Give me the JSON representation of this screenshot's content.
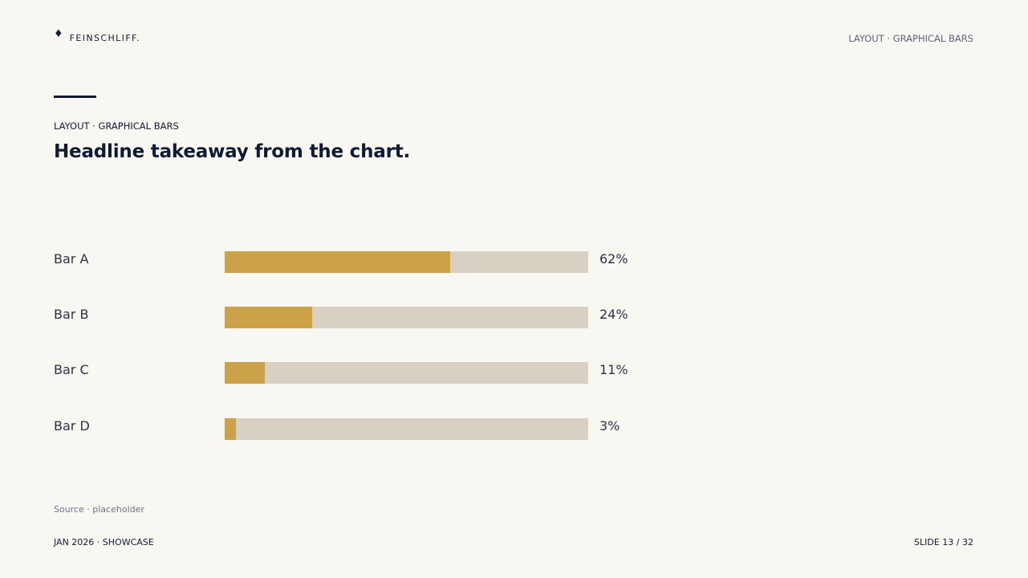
{
  "brand": {
    "icon": "diamond-icon",
    "name": "FEINSCHLIFF."
  },
  "header": {
    "section": "LAYOUT · GRAPHICAL BARS"
  },
  "eyebrow": "LAYOUT · GRAPHICAL BARS",
  "headline": "Headline takeaway from the chart.",
  "colors": {
    "bar_fill": "#cba24a",
    "bar_track": "#d8d0c2",
    "ink": "#0f1b33",
    "background": "#f9f7f2"
  },
  "chart_data": {
    "type": "bar",
    "orientation": "horizontal",
    "categories": [
      "Bar A",
      "Bar B",
      "Bar C",
      "Bar D"
    ],
    "values": [
      62,
      24,
      11,
      3
    ],
    "value_labels": [
      "62%",
      "24%",
      "11%",
      "3%"
    ],
    "xlim": [
      0,
      100
    ],
    "title": "",
    "xlabel": "",
    "ylabel": "",
    "grid": false,
    "legend": "none"
  },
  "source": "Source · placeholder",
  "footer": {
    "left": "JAN 2026 · SHOWCASE",
    "right": "SLIDE 13 / 32"
  }
}
